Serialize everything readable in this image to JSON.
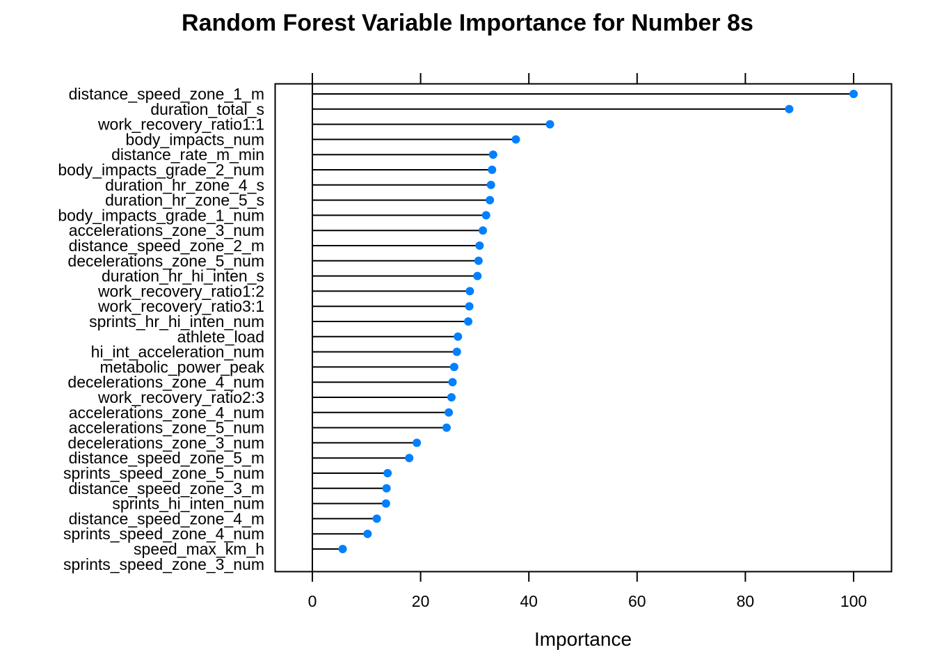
{
  "chart_data": {
    "type": "lollipop",
    "title": "Random Forest Variable Importance for Number 8s",
    "xlabel": "Importance",
    "ylabel": "",
    "xlim": [
      -7,
      107
    ],
    "xticks": [
      0,
      20,
      40,
      60,
      80,
      100
    ],
    "xtick_labels": [
      "0",
      "20",
      "40",
      "60",
      "80",
      "100"
    ],
    "grid": false,
    "legend": "none",
    "point_color": "#0080FF",
    "categories": [
      "distance_speed_zone_1_m",
      "duration_total_s",
      "work_recovery_ratio1:1",
      "body_impacts_num",
      "distance_rate_m_min",
      "body_impacts_grade_2_num",
      "duration_hr_zone_4_s",
      "duration_hr_zone_5_s",
      "body_impacts_grade_1_num",
      "accelerations_zone_3_num",
      "distance_speed_zone_2_m",
      "decelerations_zone_5_num",
      "duration_hr_hi_inten_s",
      "work_recovery_ratio1:2",
      "work_recovery_ratio3:1",
      "sprints_hr_hi_inten_num",
      "athlete_load",
      "hi_int_acceleration_num",
      "metabolic_power_peak",
      "decelerations_zone_4_num",
      "work_recovery_ratio2:3",
      "accelerations_zone_4_num",
      "accelerations_zone_5_num",
      "decelerations_zone_3_num",
      "distance_speed_zone_5_m",
      "sprints_speed_zone_5_num",
      "distance_speed_zone_3_m",
      "sprints_hi_inten_num",
      "distance_speed_zone_4_m",
      "sprints_speed_zone_4_num",
      "speed_max_km_h",
      "sprints_speed_zone_3_num"
    ],
    "values": [
      100,
      88.1,
      43.9,
      37.6,
      33.4,
      33.2,
      33.0,
      32.8,
      32.1,
      31.5,
      30.9,
      30.7,
      30.5,
      29.1,
      29.0,
      28.8,
      26.9,
      26.7,
      26.2,
      25.9,
      25.7,
      25.2,
      24.8,
      19.3,
      17.9,
      13.9,
      13.7,
      13.6,
      11.9,
      10.2,
      5.6,
      0
    ]
  }
}
